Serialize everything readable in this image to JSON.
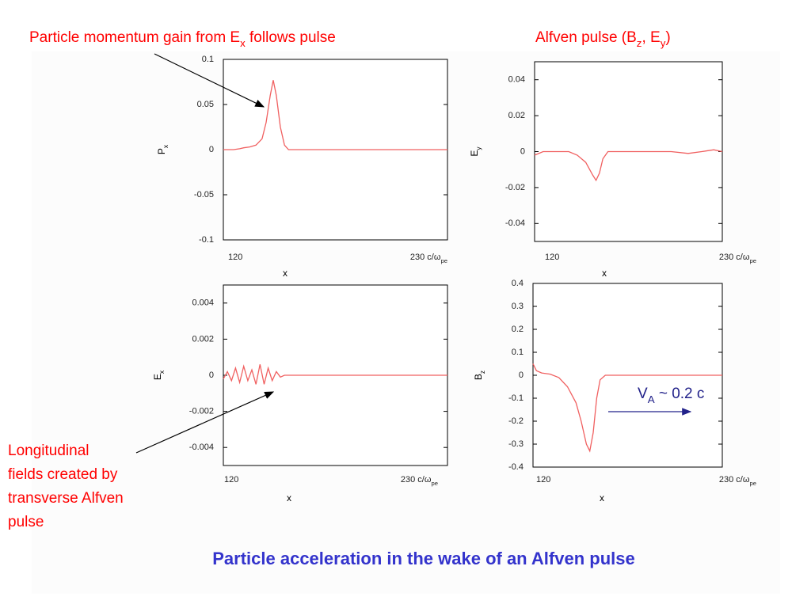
{
  "slide_title": "Particle acceleration in the wake of an Alfven pulse",
  "chart_data": [
    {
      "type": "line",
      "annotation": [
        "Particle momentum gain from E",
        {
          "sub": "x"
        },
        " follows pulse"
      ],
      "ylabel": [
        "P",
        {
          "sub": "x"
        }
      ],
      "xlabel": "x",
      "xunit": [
        "c/ω",
        {
          "sub": "pe"
        }
      ],
      "xlim": [
        120,
        230
      ],
      "xticks": [
        120,
        230
      ],
      "ylim": [
        -0.1,
        0.1
      ],
      "yticks": [
        -0.1,
        -0.05,
        0,
        0.05,
        0.1
      ],
      "color": "#f06060",
      "x": [
        120,
        125,
        128,
        130,
        133,
        136,
        139,
        141,
        143,
        144.5,
        146,
        148,
        150,
        152,
        160,
        180,
        200,
        230
      ],
      "values": [
        0,
        0,
        0.001,
        0.002,
        0.003,
        0.005,
        0.012,
        0.03,
        0.06,
        0.077,
        0.06,
        0.025,
        0.005,
        0,
        0,
        0,
        0,
        0
      ]
    },
    {
      "type": "line",
      "annotation": [
        "Alfven pulse (B",
        {
          "sub": "z"
        },
        ", E",
        {
          "sub": "y"
        },
        ")"
      ],
      "ylabel": [
        "E",
        {
          "sub": "y"
        }
      ],
      "xlabel": "x",
      "xunit": [
        "c/ω",
        {
          "sub": "pe"
        }
      ],
      "xlim": [
        120,
        230
      ],
      "xticks": [
        120,
        230
      ],
      "ylim": [
        -0.05,
        0.05
      ],
      "yticks": [
        -0.04,
        -0.02,
        0,
        0.02,
        0.04
      ],
      "color": "#f06060",
      "x": [
        120,
        125,
        130,
        140,
        145,
        150,
        154,
        156,
        158,
        160,
        163,
        170,
        190,
        200,
        210,
        218,
        225,
        230
      ],
      "values": [
        -0.002,
        0,
        0,
        0,
        -0.002,
        -0.006,
        -0.013,
        -0.016,
        -0.012,
        -0.004,
        0,
        0,
        0,
        0,
        -0.001,
        0,
        0.001,
        0
      ]
    },
    {
      "type": "line",
      "annotation": [
        "Longitudinal",
        "fields created by",
        "transverse Alfven",
        "pulse"
      ],
      "ylabel": [
        "E",
        {
          "sub": "x"
        }
      ],
      "xlabel": "x",
      "xunit": [
        "c/ω",
        {
          "sub": "pe"
        }
      ],
      "xlim": [
        120,
        230
      ],
      "xticks": [
        120,
        230
      ],
      "ylim": [
        -0.005,
        0.005
      ],
      "yticks": [
        -0.004,
        -0.002,
        0,
        0.002,
        0.004
      ],
      "color": "#f06060",
      "x": [
        120,
        122,
        124,
        126,
        128,
        130,
        132,
        134,
        136,
        138,
        140,
        142,
        144,
        146,
        148,
        150,
        160,
        230
      ],
      "values": [
        -0.0002,
        0.0002,
        -0.0003,
        0.0004,
        -0.0004,
        0.0005,
        -0.0003,
        0.0003,
        -0.0005,
        0.0006,
        -0.0005,
        0.0004,
        -0.0003,
        0.0002,
        -0.0001,
        0,
        0,
        0
      ]
    },
    {
      "type": "line",
      "annotation": [
        "V",
        {
          "sub": "A"
        },
        " ~ 0.2 c"
      ],
      "ylabel": [
        "B",
        {
          "sub": "z"
        }
      ],
      "xlabel": "x",
      "xunit": [
        "c/ω",
        {
          "sub": "pe"
        }
      ],
      "xlim": [
        120,
        230
      ],
      "xticks": [
        120,
        230
      ],
      "ylim": [
        -0.4,
        0.4
      ],
      "yticks": [
        -0.4,
        -0.3,
        -0.2,
        -0.1,
        0,
        0.1,
        0.2,
        0.3,
        0.4
      ],
      "color": "#f06060",
      "x": [
        120,
        122,
        125,
        130,
        135,
        140,
        145,
        148,
        151,
        153,
        155,
        157,
        159,
        162,
        170,
        230
      ],
      "values": [
        0.05,
        0.02,
        0.01,
        0.005,
        -0.01,
        -0.05,
        -0.12,
        -0.2,
        -0.3,
        -0.33,
        -0.25,
        -0.1,
        -0.02,
        0,
        0,
        0
      ]
    }
  ]
}
